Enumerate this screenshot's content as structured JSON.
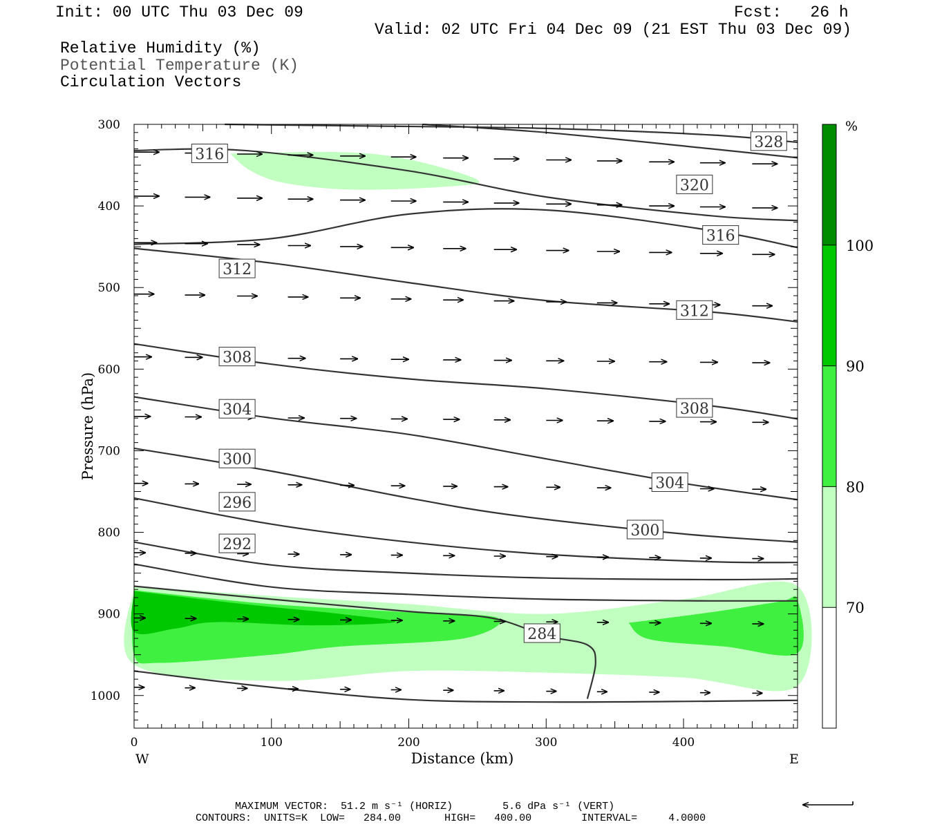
{
  "header": {
    "init": "Init: 00 UTC Thu 03 Dec 09",
    "fcst": "Fcst:   26 h",
    "valid": "Valid: 02 UTC Fri 04 Dec 09 (21 EST Thu 03 Dec 09)",
    "fields": [
      "Relative Humidity (%)",
      "Potential Temperature (K)",
      "Circulation Vectors"
    ]
  },
  "footer": {
    "max_vector": "MAXIMUM VECTOR:  51.2 m s⁻¹ (HORIZ)        5.6 dPa s⁻¹ (VERT)",
    "contours": "CONTOURS:  UNITS=K  LOW=   284.00       HIGH=   400.00        INTERVAL=     4.0000"
  },
  "chart_data": {
    "type": "cross-section",
    "xlabel": "Distance (km)",
    "ylabel": "Pressure (hPa)",
    "x_ticks": [
      0,
      100,
      200,
      300,
      400
    ],
    "y_ticks": [
      300,
      400,
      500,
      600,
      700,
      800,
      900,
      1000
    ],
    "xlim": [
      0,
      483
    ],
    "ylim": [
      1040,
      300
    ],
    "x_end_labels": {
      "left": "W",
      "right": "E"
    },
    "colorbar": {
      "unit": "%",
      "levels": [
        70,
        80,
        90,
        100
      ],
      "colors": [
        "#ffffff",
        "#c0ffc0",
        "#40f040",
        "#00c800",
        "#008c00"
      ]
    },
    "rh_shading": [
      {
        "level": 70,
        "color": "#c0ffc0",
        "points": [
          [
            0,
            866
          ],
          [
            100,
            878
          ],
          [
            200,
            888
          ],
          [
            300,
            900
          ],
          [
            400,
            882
          ],
          [
            483,
            866
          ],
          [
            483,
            988
          ],
          [
            400,
            978
          ],
          [
            300,
            972
          ],
          [
            200,
            970
          ],
          [
            100,
            982
          ],
          [
            0,
            962
          ]
        ]
      },
      {
        "level": 70,
        "color": "#c0ffc0",
        "points": [
          [
            70,
            336
          ],
          [
            150,
            334
          ],
          [
            200,
            343
          ],
          [
            250,
            368
          ],
          [
            230,
            376
          ],
          [
            160,
            380
          ],
          [
            110,
            372
          ],
          [
            85,
            357
          ]
        ]
      },
      {
        "level": 80,
        "color": "#40f040",
        "points": [
          [
            0,
            871
          ],
          [
            100,
            888
          ],
          [
            200,
            898
          ],
          [
            265,
            905
          ],
          [
            240,
            930
          ],
          [
            150,
            940
          ],
          [
            100,
            950
          ],
          [
            20,
            960
          ],
          [
            0,
            950
          ]
        ]
      },
      {
        "level": 80,
        "color": "#40f040",
        "points": [
          [
            360,
            911
          ],
          [
            420,
            898
          ],
          [
            470,
            885
          ],
          [
            483,
            883
          ],
          [
            483,
            948
          ],
          [
            430,
            940
          ],
          [
            375,
            931
          ]
        ]
      },
      {
        "level": 90,
        "color": "#00c800",
        "points": [
          [
            0,
            872
          ],
          [
            80,
            888
          ],
          [
            150,
            900
          ],
          [
            190,
            910
          ],
          [
            130,
            914
          ],
          [
            60,
            910
          ],
          [
            30,
            918
          ],
          [
            0,
            922
          ]
        ]
      }
    ],
    "theta_contours": [
      {
        "value": 328,
        "points": [
          [
            66,
            300
          ],
          [
            170,
            302
          ],
          [
            300,
            305
          ],
          [
            420,
            313
          ],
          [
            483,
            322
          ]
        ]
      },
      {
        "value": 324,
        "points": [
          [
            210,
            300
          ],
          [
            300,
            310
          ],
          [
            420,
            330
          ],
          [
            483,
            341
          ]
        ]
      },
      {
        "value": 320,
        "points": [
          [
            0,
            332
          ],
          [
            80,
            332
          ],
          [
            200,
            357
          ],
          [
            300,
            389
          ],
          [
            420,
            412
          ],
          [
            483,
            418
          ]
        ]
      },
      {
        "value": 316,
        "points": [
          [
            0,
            447
          ],
          [
            100,
            440
          ],
          [
            200,
            410
          ],
          [
            300,
            405
          ],
          [
            420,
            430
          ],
          [
            483,
            451
          ]
        ]
      },
      {
        "value": 312,
        "points": [
          [
            0,
            452
          ],
          [
            100,
            470
          ],
          [
            200,
            494
          ],
          [
            300,
            516
          ],
          [
            420,
            530
          ],
          [
            483,
            542
          ]
        ]
      },
      {
        "value": 308,
        "points": [
          [
            0,
            569
          ],
          [
            100,
            594
          ],
          [
            200,
            612
          ],
          [
            300,
            624
          ],
          [
            420,
            645
          ],
          [
            483,
            661
          ]
        ]
      },
      {
        "value": 304,
        "points": [
          [
            0,
            634
          ],
          [
            100,
            660
          ],
          [
            200,
            680
          ],
          [
            300,
            710
          ],
          [
            400,
            740
          ],
          [
            483,
            760
          ]
        ]
      },
      {
        "value": 300,
        "points": [
          [
            0,
            697
          ],
          [
            100,
            725
          ],
          [
            200,
            758
          ],
          [
            280,
            780
          ],
          [
            400,
            802
          ],
          [
            483,
            812
          ]
        ]
      },
      {
        "value": 296,
        "points": [
          [
            0,
            758
          ],
          [
            100,
            790
          ],
          [
            200,
            812
          ],
          [
            300,
            827
          ],
          [
            420,
            836
          ],
          [
            483,
            837
          ]
        ]
      },
      {
        "value": 292,
        "points": [
          [
            0,
            812
          ],
          [
            100,
            840
          ],
          [
            200,
            850
          ],
          [
            300,
            856
          ],
          [
            420,
            858
          ],
          [
            483,
            857
          ]
        ]
      },
      {
        "value": 288,
        "points": [
          [
            0,
            839
          ],
          [
            100,
            867
          ],
          [
            200,
            876
          ],
          [
            300,
            882
          ],
          [
            420,
            884
          ],
          [
            483,
            884
          ]
        ]
      },
      {
        "value": 284,
        "points": [
          [
            0,
            866
          ],
          [
            100,
            882
          ],
          [
            200,
            897
          ],
          [
            260,
            905
          ],
          [
            300,
            927
          ],
          [
            330,
            938
          ],
          [
            336,
            960
          ],
          [
            330,
            1004
          ]
        ]
      },
      {
        "value": 284,
        "points": [
          [
            0,
            970
          ],
          [
            100,
            990
          ],
          [
            200,
            1005
          ],
          [
            300,
            1008
          ],
          [
            420,
            1007
          ],
          [
            483,
            1006
          ]
        ]
      }
    ],
    "contour_labels": [
      {
        "text": "328",
        "x": 462,
        "p": 321
      },
      {
        "text": "320",
        "x": 408,
        "p": 374
      },
      {
        "text": "316",
        "x": 55,
        "p": 336
      },
      {
        "text": "316",
        "x": 427,
        "p": 436
      },
      {
        "text": "312",
        "x": 75,
        "p": 477
      },
      {
        "text": "312",
        "x": 408,
        "p": 528
      },
      {
        "text": "308",
        "x": 75,
        "p": 585
      },
      {
        "text": "308",
        "x": 408,
        "p": 648
      },
      {
        "text": "304",
        "x": 75,
        "p": 649
      },
      {
        "text": "304",
        "x": 390,
        "p": 739
      },
      {
        "text": "300",
        "x": 75,
        "p": 710
      },
      {
        "text": "300",
        "x": 372,
        "p": 797
      },
      {
        "text": "296",
        "x": 75,
        "p": 763
      },
      {
        "text": "292",
        "x": 75,
        "p": 814
      },
      {
        "text": "284",
        "x": 297,
        "p": 924
      }
    ],
    "vector_rows": [
      {
        "p": 334,
        "u": 1.0
      },
      {
        "p": 388,
        "u": 1.0
      },
      {
        "p": 445,
        "u": 0.9
      },
      {
        "p": 508,
        "u": 0.8
      },
      {
        "p": 585,
        "u": 0.7
      },
      {
        "p": 658,
        "u": 0.65
      },
      {
        "p": 740,
        "u": 0.55
      },
      {
        "p": 825,
        "u": 0.45
      },
      {
        "p": 905,
        "u": 0.45
      },
      {
        "p": 990,
        "u": 0.4
      }
    ],
    "max_vector_horiz": 51.2,
    "max_vector_vert": 5.6
  }
}
